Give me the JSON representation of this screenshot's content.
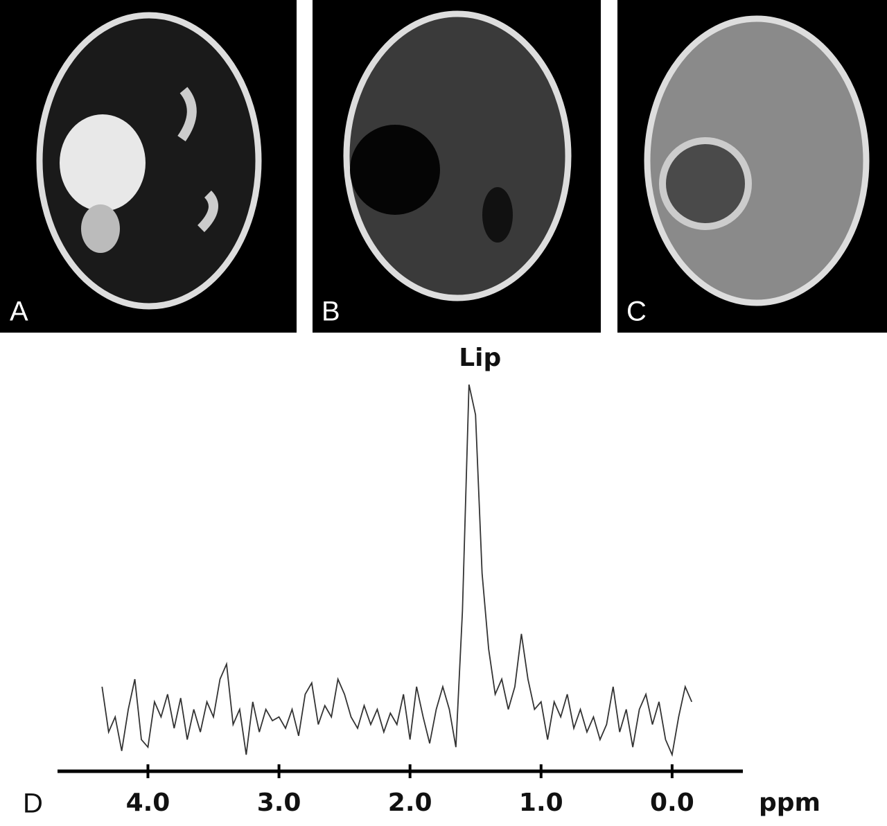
{
  "panels": [
    {
      "label": "A"
    },
    {
      "label": "B"
    },
    {
      "label": "C"
    }
  ],
  "chart_data": {
    "type": "line",
    "panel_label": "D",
    "annotation": "Lip",
    "xlabel": "ppm",
    "color": "#333333",
    "x": [
      4.35,
      4.3,
      4.25,
      4.2,
      4.15,
      4.1,
      4.05,
      4.0,
      3.95,
      3.9,
      3.85,
      3.8,
      3.75,
      3.7,
      3.65,
      3.6,
      3.55,
      3.5,
      3.45,
      3.4,
      3.35,
      3.3,
      3.25,
      3.2,
      3.15,
      3.1,
      3.05,
      3.0,
      2.95,
      2.9,
      2.85,
      2.8,
      2.75,
      2.7,
      2.65,
      2.6,
      2.55,
      2.5,
      2.45,
      2.4,
      2.35,
      2.3,
      2.25,
      2.2,
      2.15,
      2.1,
      2.05,
      2.0,
      1.95,
      1.9,
      1.85,
      1.8,
      1.75,
      1.7,
      1.65,
      1.6,
      1.55,
      1.5,
      1.45,
      1.4,
      1.35,
      1.3,
      1.25,
      1.2,
      1.15,
      1.1,
      1.05,
      1.0,
      0.95,
      0.9,
      0.85,
      0.8,
      0.75,
      0.7,
      0.65,
      0.6,
      0.55,
      0.5,
      0.45,
      0.4,
      0.35,
      0.3,
      0.25,
      0.2,
      0.15,
      0.1,
      0.05,
      0.0,
      -0.05,
      -0.1,
      -0.15
    ],
    "values": [
      20,
      8,
      12,
      3,
      14,
      22,
      6,
      4,
      16,
      12,
      18,
      9,
      17,
      6,
      14,
      8,
      16,
      12,
      22,
      26,
      10,
      14,
      2,
      16,
      8,
      14,
      11,
      12,
      9,
      14,
      7,
      18,
      21,
      10,
      15,
      12,
      22,
      18,
      12,
      9,
      15,
      10,
      14,
      8,
      13,
      10,
      18,
      6,
      20,
      12,
      5,
      14,
      20,
      14,
      4,
      40,
      100,
      92,
      50,
      30,
      18,
      22,
      14,
      20,
      34,
      22,
      14,
      16,
      6,
      16,
      12,
      18,
      9,
      14,
      8,
      12,
      6,
      10,
      20,
      8,
      14,
      4,
      14,
      18,
      10,
      16,
      6,
      2,
      12,
      20,
      16
    ],
    "xlim": [
      4.69,
      -0.54
    ],
    "ylim": [
      0,
      100
    ],
    "xticks": [
      {
        "value": 4,
        "label": "4.0"
      },
      {
        "value": 3,
        "label": "3.0"
      },
      {
        "value": 2,
        "label": "2.0"
      },
      {
        "value": 1,
        "label": "1.0"
      },
      {
        "value": 0,
        "label": "0.0"
      }
    ]
  }
}
